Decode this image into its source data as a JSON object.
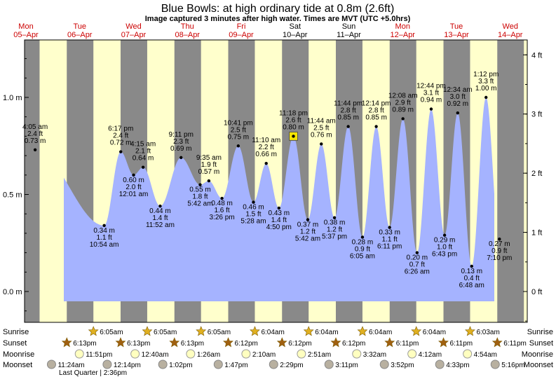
{
  "title": "Blue Bowls: at high  ordinary tide at 0.8m (2.6ft)",
  "subtitle": "Image captured 3 minutes after high water. Times are MVT (UTC +5.0hrs)",
  "days": [
    {
      "dow": "Mon",
      "date": "05–Apr",
      "weekend": false
    },
    {
      "dow": "Tue",
      "date": "06–Apr",
      "weekend": false
    },
    {
      "dow": "Wed",
      "date": "07–Apr",
      "weekend": false
    },
    {
      "dow": "Thu",
      "date": "08–Apr",
      "weekend": false
    },
    {
      "dow": "Fri",
      "date": "09–Apr",
      "weekend": false
    },
    {
      "dow": "Sat",
      "date": "10–Apr",
      "weekend": true
    },
    {
      "dow": "Sun",
      "date": "11–Apr",
      "weekend": true
    },
    {
      "dow": "Mon",
      "date": "12–Apr",
      "weekend": false
    },
    {
      "dow": "Tue",
      "date": "13–Apr",
      "weekend": false
    },
    {
      "dow": "Wed",
      "date": "14–Apr",
      "weekend": false
    }
  ],
  "left_axis": {
    "unit": "m",
    "ticks": [
      "0.0 m",
      "0.5 m",
      "1.0 m"
    ]
  },
  "right_axis": {
    "unit": "ft",
    "ticks": [
      "0 ft",
      "1 ft",
      "2 ft",
      "3 ft",
      "4 ft"
    ]
  },
  "chart_data": {
    "type": "area",
    "x_unit": "day (0 = 00:00 05-Apr)",
    "y_unit": "m",
    "ylim": [
      -0.05,
      1.25
    ],
    "grid": false,
    "series": [
      {
        "points": [
          {
            "day": 0.1708,
            "time": "4:05 am",
            "m": 0.73,
            "ft": "2.4 ft"
          },
          {
            "day": 1.4542,
            "time": "10:54 am",
            "m": 0.34,
            "ft": "1.1 ft"
          },
          {
            "day": 1.7618,
            "time": "6:17 pm",
            "m": 0.72,
            "ft": "2.4 ft"
          },
          {
            "day": 2.0007,
            "time": "12:01 am",
            "m": 0.6,
            "ft": "2.0 ft"
          },
          {
            "day": 2.1771,
            "time": "4:15 am",
            "m": 0.64,
            "ft": "2.1 ft"
          },
          {
            "day": 2.4944,
            "time": "11:52 am",
            "m": 0.44,
            "ft": "1.4 ft"
          },
          {
            "day": 2.8826,
            "time": "9:11 pm",
            "m": 0.69,
            "ft": "2.3 ft"
          },
          {
            "day": 3.2375,
            "time": "5:42 am",
            "m": 0.55,
            "ft": "1.8 ft"
          },
          {
            "day": 3.3993,
            "time": "9:35 am",
            "m": 0.57,
            "ft": "1.9 ft"
          },
          {
            "day": 3.6431,
            "time": "3:26 pm",
            "m": 0.48,
            "ft": "1.6 ft"
          },
          {
            "day": 3.9458,
            "time": "10:41 pm",
            "m": 0.75,
            "ft": "2.5 ft"
          },
          {
            "day": 4.2278,
            "time": "5:28 am",
            "m": 0.46,
            "ft": "1.5 ft"
          },
          {
            "day": 4.4653,
            "time": "11:10 am",
            "m": 0.66,
            "ft": "2.2 ft"
          },
          {
            "day": 4.7014,
            "time": "4:50 pm",
            "m": 0.43,
            "ft": "1.4 ft"
          },
          {
            "day": 4.9708,
            "time": "11:18 pm",
            "m": 0.8,
            "ft": "2.6 ft",
            "current": true
          },
          {
            "day": 5.2375,
            "time": "5:42 am",
            "m": 0.37,
            "ft": "1.2 ft"
          },
          {
            "day": 5.4889,
            "time": "11:44 am",
            "m": 0.76,
            "ft": "2.5 ft"
          },
          {
            "day": 5.734,
            "time": "5:37 pm",
            "m": 0.38,
            "ft": "1.2 ft"
          },
          {
            "day": 5.9889,
            "time": "11:44 pm",
            "m": 0.85,
            "ft": "2.8 ft"
          },
          {
            "day": 6.2535,
            "time": "6:05 am",
            "m": 0.28,
            "ft": "0.9 ft"
          },
          {
            "day": 6.5097,
            "time": "12:14 pm",
            "m": 0.85,
            "ft": "2.8 ft"
          },
          {
            "day": 6.7576,
            "time": "6:11 pm",
            "m": 0.33,
            "ft": "1.1 ft"
          },
          {
            "day": 7.0056,
            "time": "12:08 am",
            "m": 0.89,
            "ft": "2.9 ft"
          },
          {
            "day": 7.2681,
            "time": "6:26 am",
            "m": 0.2,
            "ft": "0.7 ft"
          },
          {
            "day": 7.5306,
            "time": "12:44 pm",
            "m": 0.94,
            "ft": "3.1 ft"
          },
          {
            "day": 7.7799,
            "time": "6:43 pm",
            "m": 0.29,
            "ft": "1.0 ft"
          },
          {
            "day": 8.0236,
            "time": "12:34 am",
            "m": 0.92,
            "ft": "3.0 ft"
          },
          {
            "day": 8.2833,
            "time": "6:48 am",
            "m": 0.13,
            "ft": "0.4 ft"
          },
          {
            "day": 8.55,
            "time": "1:12 pm",
            "m": 1.0,
            "ft": "3.3 ft"
          },
          {
            "day": 8.7986,
            "time": "7:10 pm",
            "m": 0.27,
            "ft": "0.9 ft"
          }
        ]
      }
    ]
  },
  "rows": {
    "sunrise_label": "Sunrise",
    "sunset_label": "Sunset",
    "moonrise_label": "Moonrise",
    "moonset_label": "Moonset",
    "sunrise": [
      "6:05am",
      "6:05am",
      "6:05am",
      "6:04am",
      "6:04am",
      "6:04am",
      "6:04am",
      "6:03am"
    ],
    "sunset": [
      "6:13pm",
      "6:13pm",
      "6:13pm",
      "6:12pm",
      "6:12pm",
      "6:12pm",
      "6:11pm",
      "6:11pm",
      "6:11pm"
    ],
    "moonrise": [
      "11:51pm",
      "12:40am",
      "1:26am",
      "2:10am",
      "2:51am",
      "3:32am",
      "4:12am",
      "4:54am"
    ],
    "moonset": [
      "11:24am",
      "12:14pm",
      "1:02pm",
      "1:47pm",
      "2:29pm",
      "3:11pm",
      "3:52pm",
      "4:33pm",
      "5:16pm"
    ],
    "note": "Last Quarter | 2:36pm"
  },
  "colors": {
    "day": "#ffffcc",
    "night": "#898989",
    "water": "#a5b3ff",
    "red_text": "#cc0000",
    "sun_star": "#e0b020",
    "sunset_star": "#a06010",
    "moonrise": "#ffffc0",
    "moonset": "#b8b0a0"
  }
}
